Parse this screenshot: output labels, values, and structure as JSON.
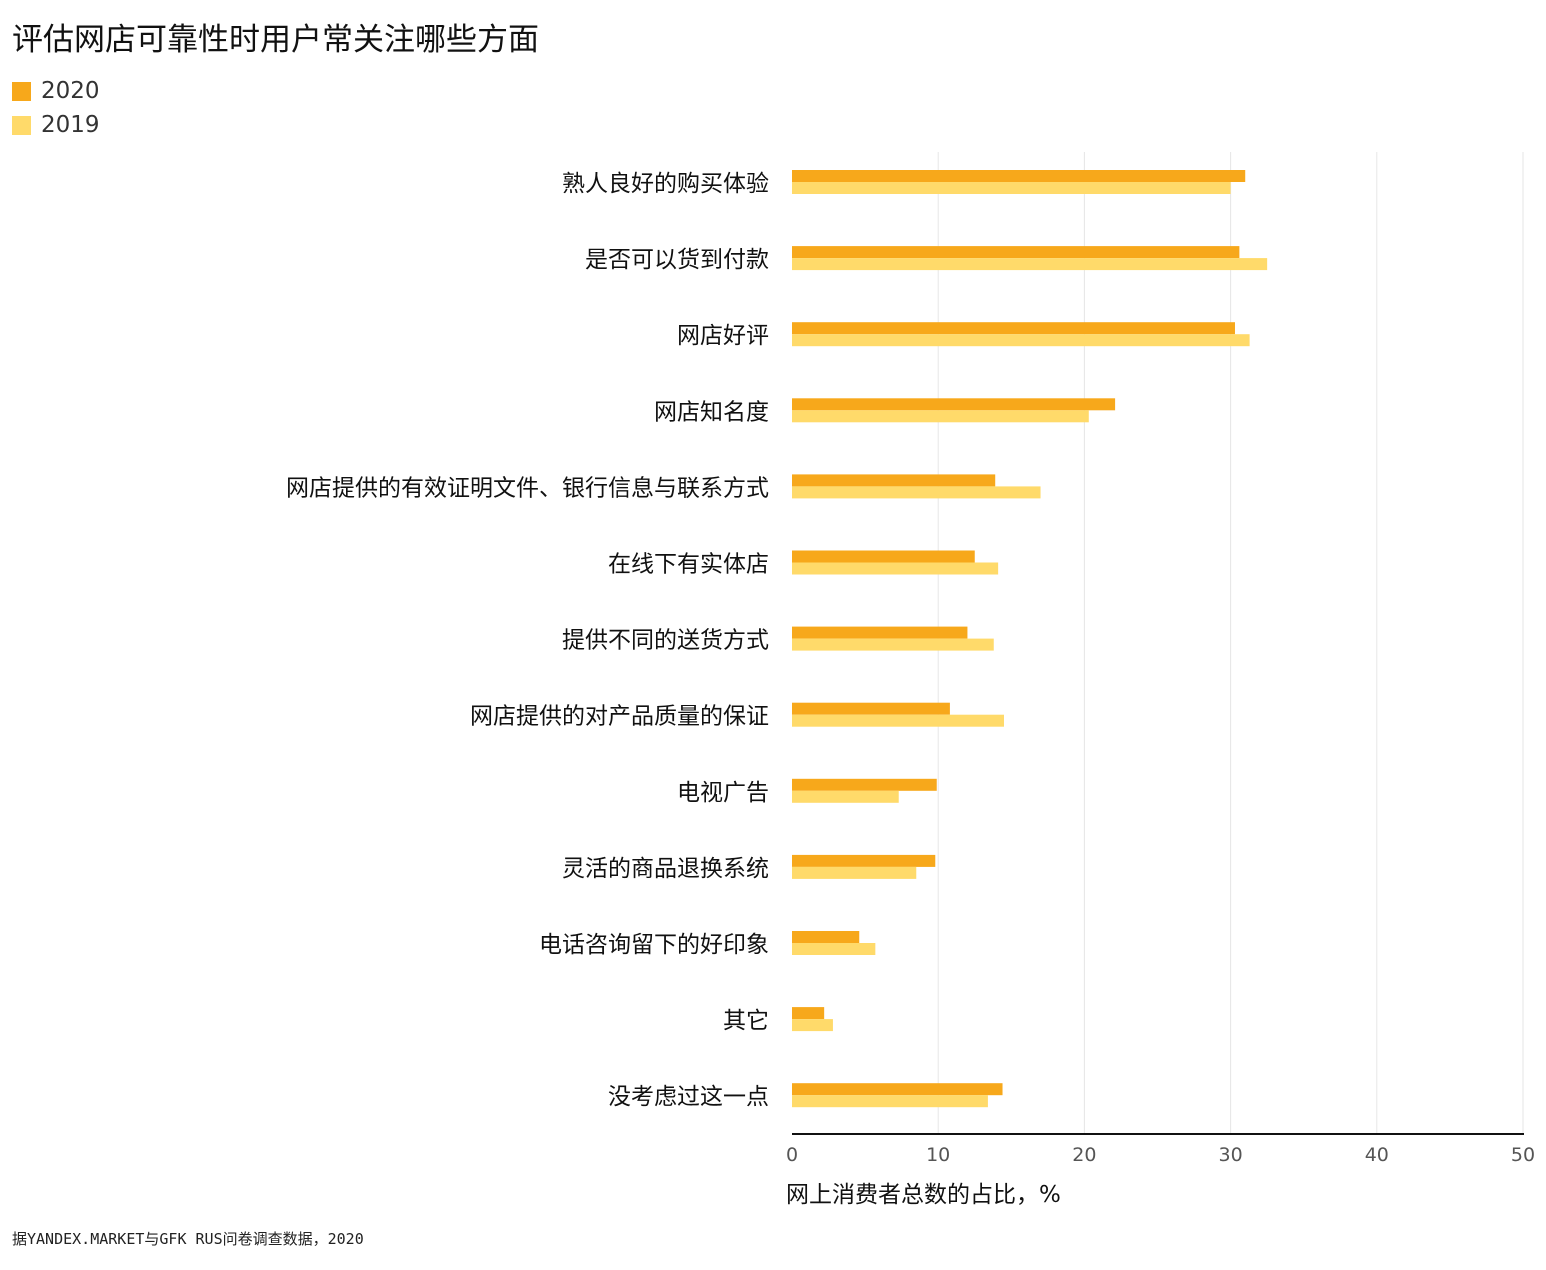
{
  "chart_data": {
    "type": "bar",
    "orientation": "horizontal",
    "title": "评估网店可靠性时用户常关注哪些方面",
    "xlabel": "网上消费者总数的占比，%",
    "xlim": [
      0,
      50
    ],
    "xticks": [
      "0",
      "10",
      "20",
      "30",
      "40",
      "50"
    ],
    "grid": true,
    "legend_position": "top-left",
    "categories": [
      "熟人良好的购买体验",
      "是否可以货到付款",
      "网店好评",
      "网店知名度",
      "网店提供的有效证明文件、银行信息与联系方式",
      "在线下有实体店",
      "提供不同的送货方式",
      "网店提供的对产品质量的保证",
      "电视广告",
      "灵活的商品退换系统",
      "电话咨询留下的好印象",
      "其它",
      "没考虑过这一点"
    ],
    "series": [
      {
        "name": "2020",
        "color": "#F7A81B",
        "values": [
          31.0,
          30.6,
          30.3,
          22.1,
          13.9,
          12.5,
          12.0,
          10.8,
          9.9,
          9.8,
          4.6,
          2.2,
          14.4
        ]
      },
      {
        "name": "2019",
        "color": "#FFDA6A",
        "values": [
          30.0,
          32.5,
          31.3,
          20.3,
          17.0,
          14.1,
          13.8,
          14.5,
          7.3,
          8.5,
          5.7,
          2.8,
          13.4
        ]
      }
    ]
  },
  "source": "据YANDEX.MARKET与GFK RUS问卷调查数据，2020"
}
